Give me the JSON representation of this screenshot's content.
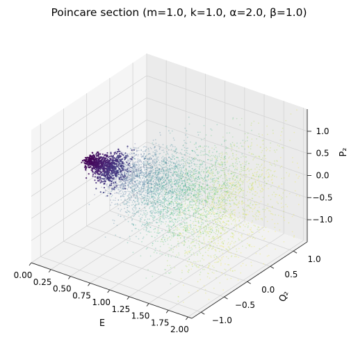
{
  "chart_data": {
    "type": "scatter",
    "projection": "3d",
    "title": "Poincare section (m=1.0, k=1.0, α=2.0, β=1.0)",
    "xlabel": "E",
    "ylabel": "Q₂",
    "zlabel": "P₂",
    "xlim": [
      0.0,
      2.05
    ],
    "ylim": [
      -1.2,
      1.3
    ],
    "zlim": [
      -1.5,
      1.5
    ],
    "x_ticks": [
      "0.00",
      "0.25",
      "0.50",
      "0.75",
      "1.00",
      "1.25",
      "1.50",
      "1.75",
      "2.00"
    ],
    "y_ticks": [
      "−1.0",
      "−0.5",
      "0.0",
      "0.5",
      "1.0"
    ],
    "z_ticks": [
      "−1.0",
      "−0.5",
      "0.0",
      "0.5",
      "1.0"
    ],
    "x_tick_values": [
      0.0,
      0.25,
      0.5,
      0.75,
      1.0,
      1.25,
      1.5,
      1.75,
      2.0
    ],
    "y_tick_values": [
      -1.0,
      -0.5,
      0.0,
      0.5,
      1.0
    ],
    "z_tick_values": [
      -1.0,
      -0.5,
      0.0,
      0.5,
      1.0
    ],
    "colormap": "viridis",
    "color_by": "E",
    "grid": true,
    "point_count_estimate": 20000,
    "series": [
      {
        "description_values": "dense cloud of points forming a cone-like fan; low E points (dark purple) concentrated near Q2≈0, P2≈0; spread in Q2 and P2 grows with E",
        "x": [
          0.02,
          0.05,
          0.1,
          0.15,
          0.2,
          0.3,
          0.4,
          0.5,
          0.6,
          0.75,
          0.9,
          1.0,
          1.1,
          1.25,
          1.4,
          1.5,
          1.6,
          1.75,
          1.9,
          2.0
        ],
        "y": [
          0.0,
          0.05,
          -0.05,
          0.1,
          -0.1,
          0.15,
          -0.2,
          0.25,
          -0.3,
          0.35,
          -0.45,
          0.5,
          -0.55,
          0.65,
          -0.7,
          0.75,
          -0.8,
          0.9,
          -0.95,
          1.0
        ],
        "z": [
          0.0,
          0.1,
          -0.1,
          0.15,
          -0.2,
          0.25,
          -0.3,
          0.35,
          -0.4,
          0.45,
          -0.55,
          0.6,
          -0.65,
          0.75,
          -0.8,
          0.9,
          -0.95,
          1.05,
          -1.1,
          1.2
        ]
      }
    ]
  }
}
